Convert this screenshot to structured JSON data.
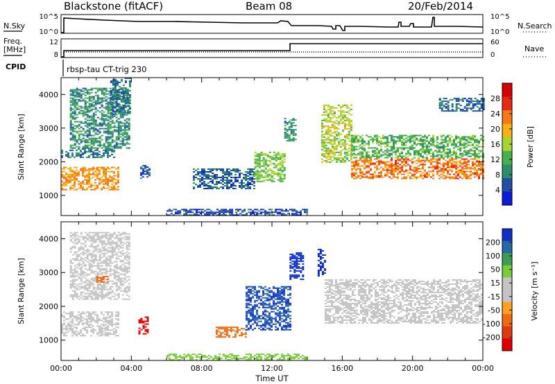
{
  "header": {
    "title": "Blackstone (fitACF)",
    "beam": "Beam 08",
    "date": "20/Feb/2014"
  },
  "status_panels": {
    "nsky_label": "N.Sky",
    "nsky_ticks": [
      "10^5",
      "10^0"
    ],
    "nsearch_label": "N.Search",
    "nsearch_ticks": [
      "10^5",
      "10^0"
    ],
    "freq_label_1": "Freq.",
    "freq_label_2": "[MHz]",
    "freq_ticks": [
      "12",
      "8"
    ],
    "nave_label": "Nave",
    "nave_ticks": [
      "60",
      "0"
    ],
    "cpid_label": "CPID",
    "cpid_value": "rbsp-tau CT-trig 230"
  },
  "colors": {
    "power_scale": [
      "#0b1bd8",
      "#224fa6",
      "#2c8f6b",
      "#46b14a",
      "#a8d433",
      "#f4b213",
      "#f57a16",
      "#e62a16",
      "#d40000"
    ],
    "velocity_scale": [
      "#1030c8",
      "#2868a8",
      "#3c9e55",
      "#78cc3a",
      "#c4c4c4",
      "#c4c4c4",
      "#ffa020",
      "#f06a10",
      "#e03a10",
      "#e00000"
    ],
    "ground_scatter": "#c4c4c4"
  },
  "chart_data": [
    {
      "type": "heatmap",
      "name": "power",
      "ylabel": "Slant Range [km]",
      "xlabel": "",
      "x_ticks": [
        "00:00",
        "04:00",
        "08:00",
        "12:00",
        "16:00",
        "20:00",
        "00:00"
      ],
      "xlim_hours": [
        0,
        24
      ],
      "ylim_km": [
        400,
        4500
      ],
      "y_ticks": [
        1000,
        2000,
        3000,
        4000
      ],
      "colorbar_label": "Power [dB]",
      "colorbar_ticks": [
        28,
        24,
        20,
        16,
        12,
        8,
        4
      ],
      "regions": [
        {
          "t0": 0.0,
          "t1": 3.2,
          "r0": 1150,
          "r1": 1850,
          "value": 24
        },
        {
          "t0": 0.0,
          "t1": 3.0,
          "r0": 2150,
          "r1": 2400,
          "value": 8
        },
        {
          "t0": 0.5,
          "t1": 3.9,
          "r0": 2400,
          "r1": 4200,
          "value": 10
        },
        {
          "t0": 2.8,
          "t1": 3.9,
          "r0": 3400,
          "r1": 4500,
          "value": 8
        },
        {
          "t0": 4.5,
          "t1": 5.0,
          "r0": 1500,
          "r1": 1900,
          "value": 6
        },
        {
          "t0": 7.5,
          "t1": 11.0,
          "r0": 1200,
          "r1": 1800,
          "value": 7
        },
        {
          "t0": 11.0,
          "t1": 12.7,
          "r0": 1400,
          "r1": 2300,
          "value": 16
        },
        {
          "t0": 12.7,
          "t1": 13.3,
          "r0": 2600,
          "r1": 3300,
          "value": 10
        },
        {
          "t0": 14.8,
          "t1": 16.5,
          "r0": 2000,
          "r1": 3700,
          "value": 18
        },
        {
          "t0": 16.5,
          "t1": 24.0,
          "r0": 1500,
          "r1": 2100,
          "value": 26
        },
        {
          "t0": 16.5,
          "t1": 24.0,
          "r0": 2100,
          "r1": 2800,
          "value": 14
        },
        {
          "t0": 21.5,
          "t1": 24.0,
          "r0": 3500,
          "r1": 3900,
          "value": 7
        },
        {
          "t0": 6.0,
          "t1": 14.0,
          "r0": 400,
          "r1": 600,
          "value": 5
        }
      ]
    },
    {
      "type": "heatmap",
      "name": "velocity",
      "ylabel": "Slant Range [km]",
      "xlabel": "Time UT",
      "x_ticks": [
        "00:00",
        "04:00",
        "08:00",
        "12:00",
        "16:00",
        "20:00",
        "00:00"
      ],
      "xlim_hours": [
        0,
        24
      ],
      "ylim_km": [
        400,
        4500
      ],
      "y_ticks": [
        1000,
        2000,
        3000,
        4000
      ],
      "colorbar_label": "Velocity [m s⁻¹]",
      "colorbar_ticks": [
        200,
        100,
        50,
        15,
        -15,
        -50,
        -100,
        -200
      ],
      "regions": [
        {
          "t0": 0.0,
          "t1": 3.2,
          "r0": 1150,
          "r1": 1850,
          "value": 0
        },
        {
          "t0": 0.5,
          "t1": 3.9,
          "r0": 2200,
          "r1": 4200,
          "value": 0
        },
        {
          "t0": 2.0,
          "t1": 2.6,
          "r0": 2700,
          "r1": 2900,
          "value": -60
        },
        {
          "t0": 4.4,
          "t1": 4.9,
          "r0": 1200,
          "r1": 1700,
          "value": -180
        },
        {
          "t0": 8.8,
          "t1": 10.5,
          "r0": 1100,
          "r1": 1400,
          "value": -90
        },
        {
          "t0": 10.5,
          "t1": 13.0,
          "r0": 1300,
          "r1": 2600,
          "value": 150
        },
        {
          "t0": 13.0,
          "t1": 13.8,
          "r0": 2800,
          "r1": 3600,
          "value": 200
        },
        {
          "t0": 14.6,
          "t1": 15.0,
          "r0": 2900,
          "r1": 3700,
          "value": 200
        },
        {
          "t0": 15.0,
          "t1": 24.0,
          "r0": 1500,
          "r1": 2800,
          "value": 0
        },
        {
          "t0": 6.0,
          "t1": 14.0,
          "r0": 400,
          "r1": 600,
          "value": 40
        }
      ]
    }
  ]
}
